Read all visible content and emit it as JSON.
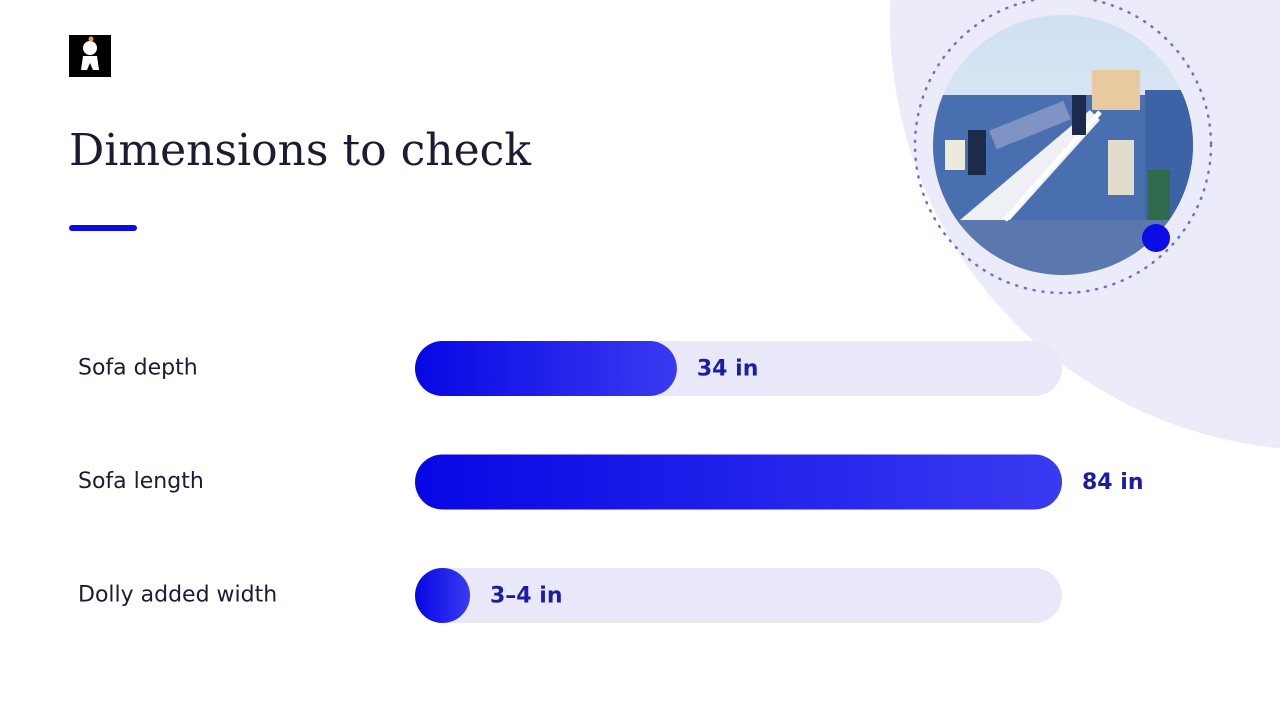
{
  "chart_data": {
    "type": "hbar",
    "title": "Dimensions to check",
    "categories": [
      "Sofa depth",
      "Sofa length",
      "Dolly added width"
    ],
    "values": [
      34,
      84,
      3.5
    ],
    "value_labels": [
      "34 in",
      "84 in",
      "3–4 in"
    ],
    "color": "#0b0be6",
    "track_color": "#e8e8f8"
  }
}
